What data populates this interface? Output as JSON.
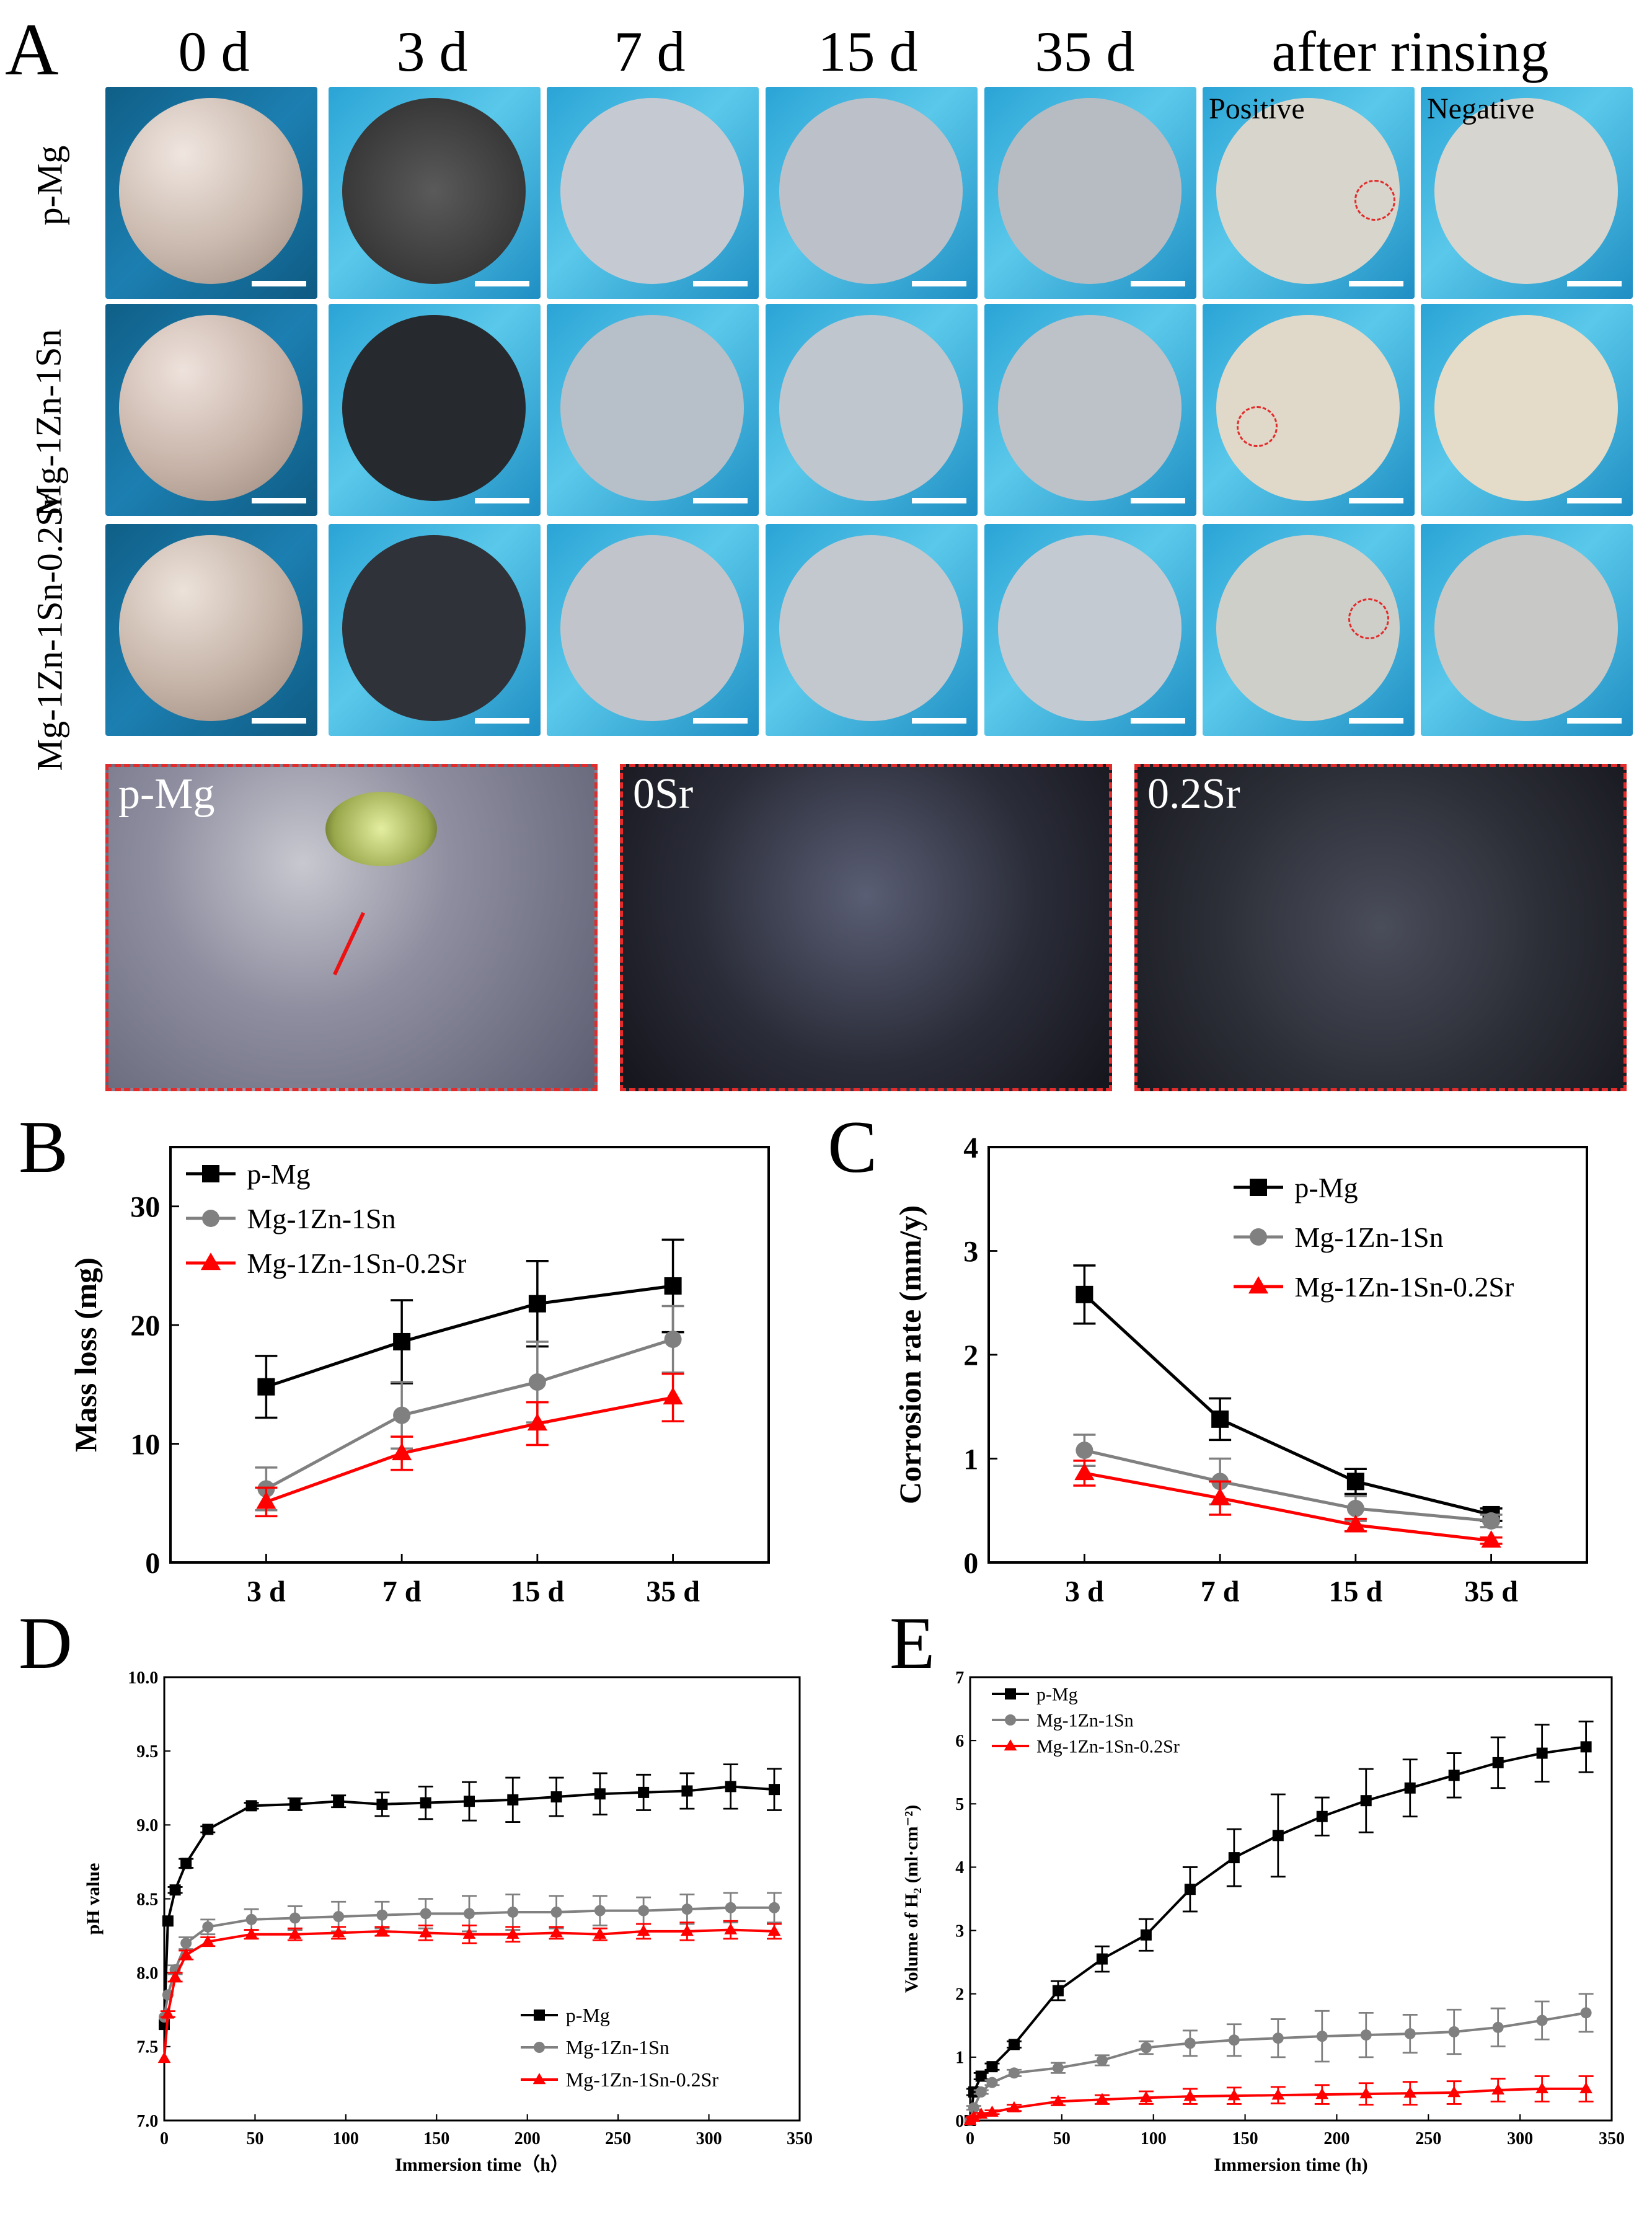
{
  "panel_a": {
    "letter": "A",
    "day_labels": [
      "0 d",
      "3 d",
      "7 d",
      "15 d",
      "35 d"
    ],
    "rinse_label": "after rinsing",
    "side_labels": [
      "Positive",
      "Negative"
    ],
    "row_labels": [
      "p-Mg",
      "Mg-1Zn-1Sn",
      "Mg-1Zn-1Sn-0.2Sr"
    ],
    "zoom_labels": [
      "p-Mg",
      "0Sr",
      "0.2Sr"
    ],
    "colors": {
      "background_blue": "#2aa4d6",
      "dashed_red": "#e32b2b"
    }
  },
  "legend_series": [
    "p-Mg",
    "Mg-1Zn-1Sn",
    "Mg-1Zn-1Sn-0.2Sr"
  ],
  "series_colors": [
    "#000000",
    "#808080",
    "#ff0000"
  ],
  "chart_data": [
    {
      "panel": "B",
      "type": "line",
      "categories": [
        "3 d",
        "7 d",
        "15 d",
        "35 d"
      ],
      "ylabel": "Mass loss (mg)",
      "xlabel": "",
      "ylim": [
        0,
        35
      ],
      "yticks": [
        0,
        10,
        20,
        30
      ],
      "series": [
        {
          "name": "p-Mg",
          "values": [
            14.8,
            18.6,
            21.8,
            23.3
          ],
          "errors": [
            2.6,
            3.5,
            3.6,
            3.9
          ]
        },
        {
          "name": "Mg-1Zn-1Sn",
          "values": [
            6.2,
            12.4,
            15.2,
            18.8
          ],
          "errors": [
            1.8,
            2.8,
            3.4,
            2.8
          ]
        },
        {
          "name": "Mg-1Zn-1Sn-0.2Sr",
          "values": [
            5.1,
            9.2,
            11.7,
            13.9
          ],
          "errors": [
            1.2,
            1.4,
            1.8,
            2.0
          ]
        }
      ]
    },
    {
      "panel": "C",
      "type": "line",
      "categories": [
        "3 d",
        "7 d",
        "15 d",
        "35 d"
      ],
      "ylabel": "Corrosion rate (mm/y)",
      "xlabel": "",
      "ylim": [
        0,
        4
      ],
      "yticks": [
        0,
        1,
        2,
        3,
        4
      ],
      "series": [
        {
          "name": "p-Mg",
          "values": [
            2.58,
            1.38,
            0.78,
            0.46
          ],
          "errors": [
            0.28,
            0.2,
            0.12,
            0.06
          ]
        },
        {
          "name": "Mg-1Zn-1Sn",
          "values": [
            1.08,
            0.78,
            0.52,
            0.4
          ],
          "errors": [
            0.15,
            0.22,
            0.12,
            0.06
          ]
        },
        {
          "name": "Mg-1Zn-1Sn-0.2Sr",
          "values": [
            0.86,
            0.62,
            0.36,
            0.21
          ],
          "errors": [
            0.12,
            0.16,
            0.06,
            0.03
          ]
        }
      ]
    },
    {
      "panel": "D",
      "type": "line",
      "xlabel": "Immersion time（h）",
      "ylabel": "pH  value",
      "xlim": [
        0,
        350
      ],
      "ylim": [
        7.0,
        10.0
      ],
      "xticks": [
        0,
        50,
        100,
        150,
        200,
        250,
        300,
        350
      ],
      "yticks": [
        7.0,
        7.5,
        8.0,
        8.5,
        9.0,
        9.5,
        10.0
      ],
      "x": [
        0,
        2,
        6,
        12,
        24,
        48,
        72,
        96,
        120,
        144,
        168,
        192,
        216,
        240,
        264,
        288,
        312,
        336
      ],
      "series": [
        {
          "name": "p-Mg",
          "values": [
            7.65,
            8.35,
            8.56,
            8.74,
            8.97,
            9.13,
            9.14,
            9.16,
            9.14,
            9.15,
            9.16,
            9.17,
            9.19,
            9.21,
            9.22,
            9.23,
            9.26,
            9.24
          ],
          "errors": [
            0,
            0,
            0.02,
            0.03,
            0.02,
            0.02,
            0.04,
            0.04,
            0.08,
            0.11,
            0.13,
            0.15,
            0.13,
            0.14,
            0.12,
            0.12,
            0.15,
            0.14
          ]
        },
        {
          "name": "Mg-1Zn-1Sn",
          "values": [
            7.7,
            7.85,
            8.02,
            8.2,
            8.31,
            8.36,
            8.37,
            8.38,
            8.39,
            8.4,
            8.4,
            8.41,
            8.41,
            8.42,
            8.42,
            8.43,
            8.44,
            8.44
          ],
          "errors": [
            0,
            0,
            0.03,
            0.04,
            0.05,
            0.07,
            0.08,
            0.1,
            0.09,
            0.1,
            0.12,
            0.12,
            0.11,
            0.1,
            0.09,
            0.1,
            0.1,
            0.1
          ]
        },
        {
          "name": "Mg-1Zn-1Sn-0.2Sr",
          "values": [
            7.42,
            7.72,
            7.97,
            8.12,
            8.21,
            8.26,
            8.26,
            8.27,
            8.28,
            8.27,
            8.26,
            8.26,
            8.27,
            8.26,
            8.28,
            8.28,
            8.29,
            8.28
          ],
          "errors": [
            0,
            0.02,
            0.03,
            0.03,
            0.03,
            0.03,
            0.04,
            0.04,
            0.03,
            0.05,
            0.06,
            0.05,
            0.04,
            0.04,
            0.05,
            0.06,
            0.06,
            0.05
          ]
        }
      ]
    },
    {
      "panel": "E",
      "type": "line",
      "xlabel": "Immersion time (h)",
      "ylabel": "Volume of H₂ (ml·cm⁻²)",
      "xlim": [
        0,
        350
      ],
      "ylim": [
        0,
        7
      ],
      "xticks": [
        0,
        50,
        100,
        150,
        200,
        250,
        300,
        350
      ],
      "yticks": [
        0,
        1,
        2,
        3,
        4,
        5,
        6,
        7
      ],
      "x": [
        0,
        2,
        6,
        12,
        24,
        48,
        72,
        96,
        120,
        144,
        168,
        192,
        216,
        240,
        264,
        288,
        312,
        336
      ],
      "series": [
        {
          "name": "p-Mg",
          "values": [
            0.0,
            0.45,
            0.7,
            0.85,
            1.2,
            2.05,
            2.55,
            2.93,
            3.65,
            4.15,
            4.5,
            4.8,
            5.05,
            5.25,
            5.45,
            5.65,
            5.8,
            5.9
          ],
          "errors": [
            0,
            0.05,
            0.05,
            0.05,
            0.05,
            0.15,
            0.2,
            0.25,
            0.35,
            0.45,
            0.65,
            0.3,
            0.5,
            0.45,
            0.35,
            0.4,
            0.45,
            0.4
          ]
        },
        {
          "name": "Mg-1Zn-1Sn",
          "values": [
            0.0,
            0.2,
            0.45,
            0.6,
            0.75,
            0.83,
            0.95,
            1.15,
            1.22,
            1.27,
            1.3,
            1.33,
            1.35,
            1.37,
            1.4,
            1.47,
            1.58,
            1.7
          ],
          "errors": [
            0,
            0.03,
            0.03,
            0.04,
            0.05,
            0.08,
            0.08,
            0.1,
            0.2,
            0.25,
            0.3,
            0.4,
            0.35,
            0.3,
            0.35,
            0.3,
            0.3,
            0.3
          ]
        },
        {
          "name": "Mg-1Zn-1Sn-0.2Sr",
          "values": [
            0.0,
            0.05,
            0.1,
            0.13,
            0.2,
            0.3,
            0.33,
            0.36,
            0.38,
            0.39,
            0.4,
            0.41,
            0.42,
            0.43,
            0.44,
            0.48,
            0.5,
            0.5
          ],
          "errors": [
            0,
            0.01,
            0.02,
            0.03,
            0.05,
            0.06,
            0.07,
            0.1,
            0.12,
            0.13,
            0.13,
            0.15,
            0.17,
            0.18,
            0.18,
            0.18,
            0.2,
            0.2
          ]
        }
      ]
    }
  ]
}
